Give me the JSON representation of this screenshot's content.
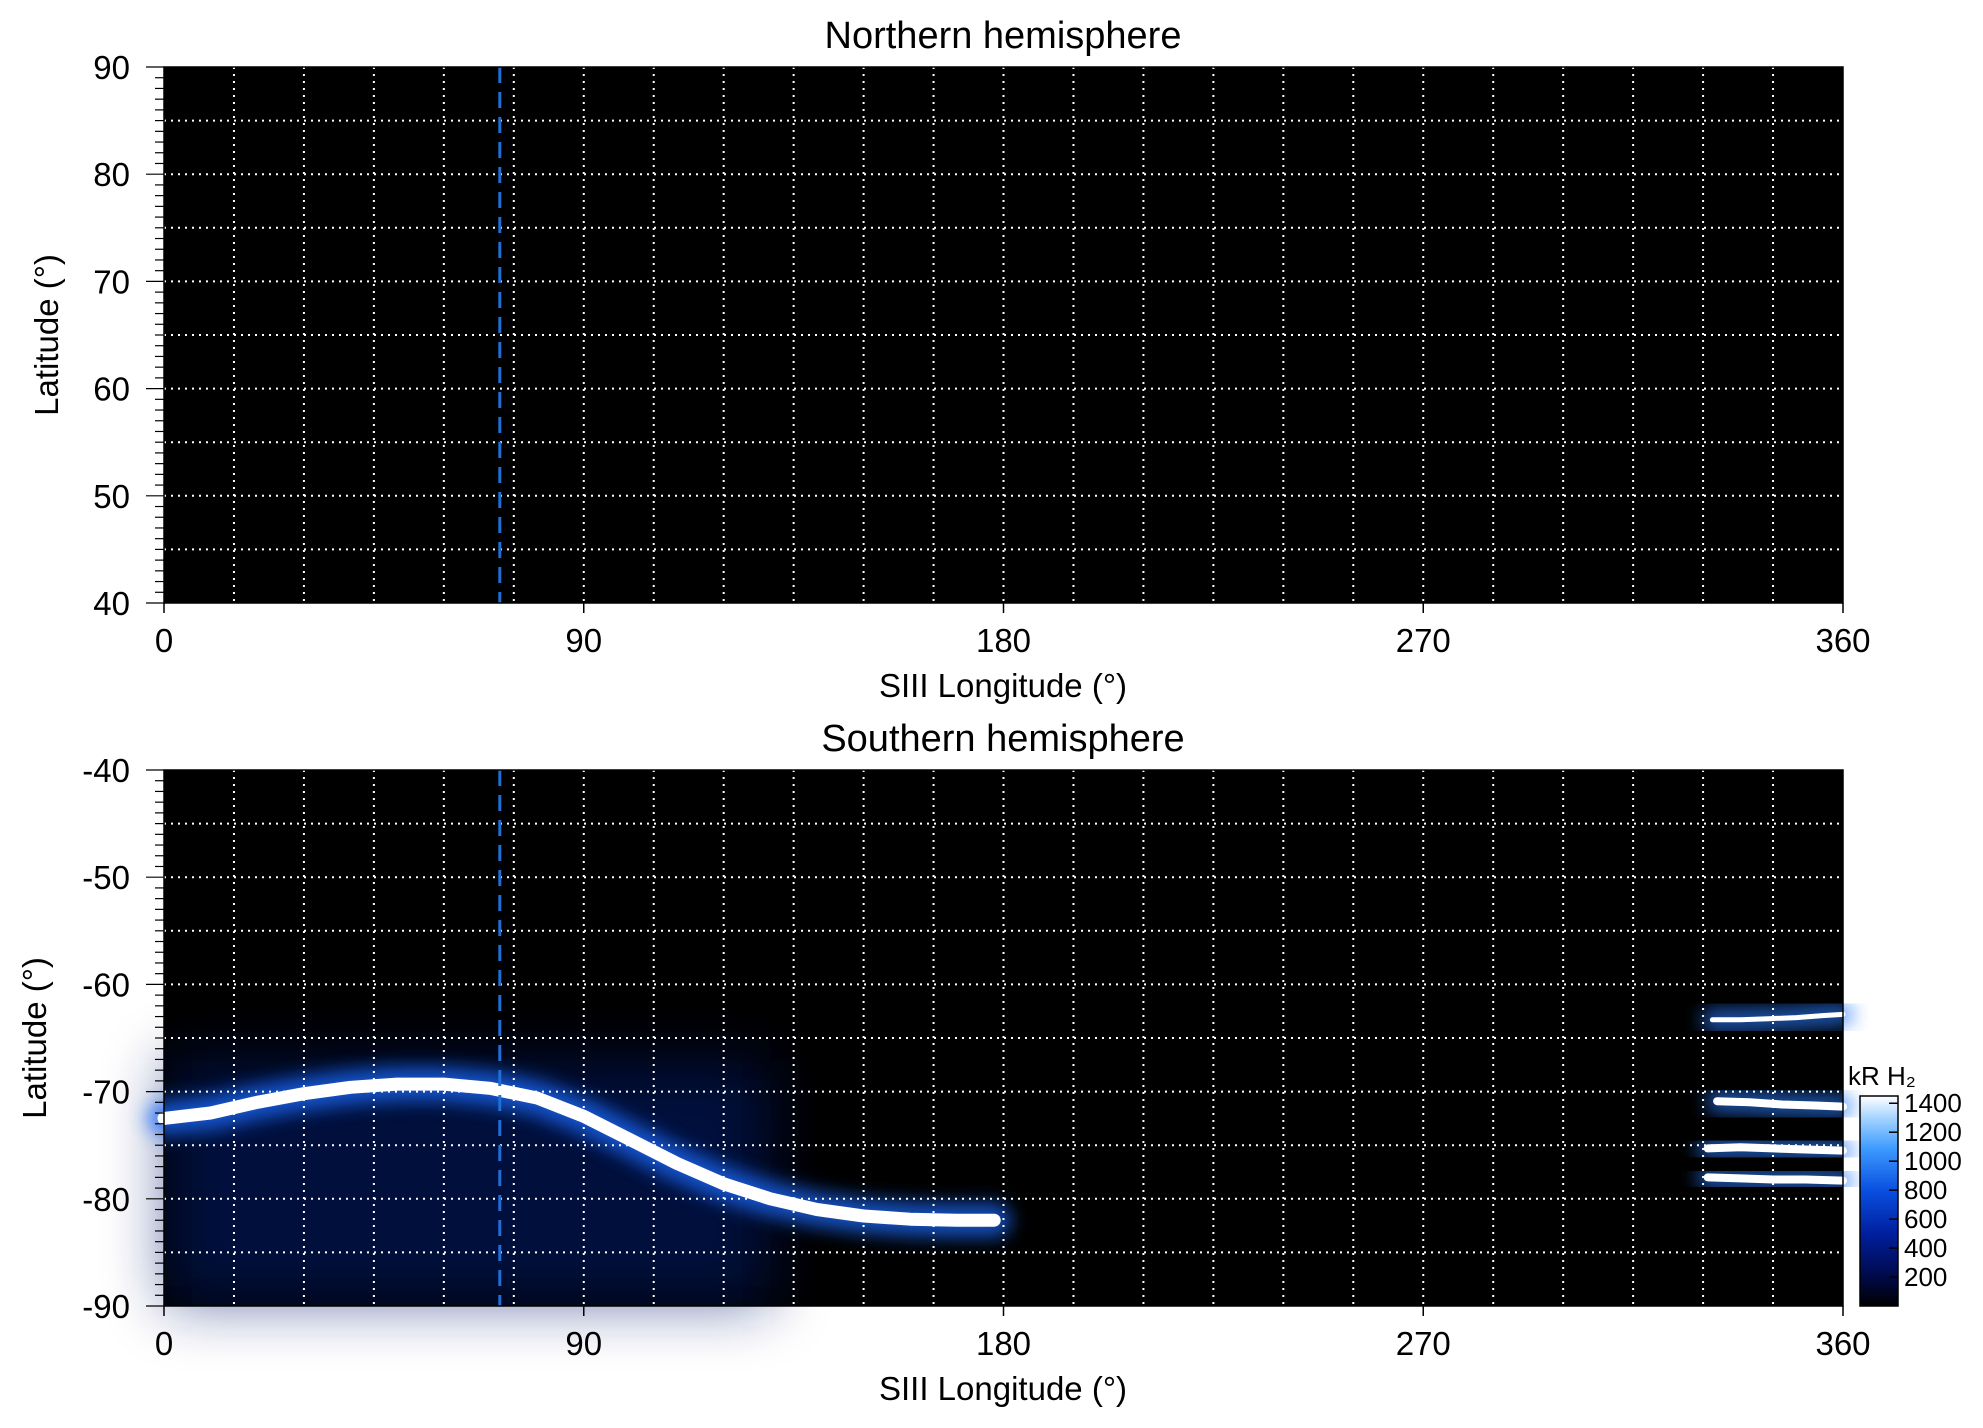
{
  "chart_data": [
    {
      "type": "heatmap",
      "title": "Northern hemisphere",
      "xlabel": "SIII Longitude (°)",
      "ylabel": "Latitude (°)",
      "xlim": [
        0,
        360
      ],
      "ylim": [
        40,
        90
      ],
      "x_ticks": [
        0,
        90,
        180,
        270,
        360
      ],
      "y_ticks": [
        40,
        50,
        60,
        70,
        80,
        90
      ],
      "x_grid_step": 15,
      "y_grid_step": 5,
      "grid": true,
      "background_color": "#000000",
      "grid_color": "#ffffff",
      "marker_longitude": 72,
      "marker_color": "#1f6fd6",
      "emission": "none"
    },
    {
      "type": "heatmap",
      "title": "Southern hemisphere",
      "xlabel": "SIII Longitude (°)",
      "ylabel": "Latitude (°)",
      "xlim": [
        0,
        360
      ],
      "ylim": [
        -90,
        -40
      ],
      "x_ticks": [
        0,
        90,
        180,
        270,
        360
      ],
      "y_ticks": [
        -90,
        -80,
        -70,
        -60,
        -50,
        -40
      ],
      "x_grid_step": 15,
      "y_grid_step": 5,
      "grid": true,
      "background_color": "#000000",
      "grid_color": "#ffffff",
      "marker_longitude": 72,
      "marker_color": "#1f6fd6",
      "main_oval": {
        "lon": [
          0,
          10,
          20,
          30,
          40,
          50,
          60,
          70,
          80,
          90,
          100,
          110,
          120,
          130,
          140,
          150,
          160,
          170,
          178
        ],
        "lat": [
          -72.5,
          -72,
          -71,
          -70.2,
          -69.6,
          -69.3,
          -69.3,
          -69.7,
          -70.6,
          -72.3,
          -74.5,
          -76.7,
          -78.6,
          -80,
          -81,
          -81.6,
          -81.9,
          -82,
          -82
        ]
      },
      "secondary_arcs": [
        {
          "lon": [
            332,
            338,
            344,
            350,
            356,
            360
          ],
          "lat": [
            -63.3,
            -63.3,
            -63.2,
            -63.1,
            -62.9,
            -62.8
          ]
        },
        {
          "lon": [
            333,
            340,
            347,
            354,
            360
          ],
          "lat": [
            -70.9,
            -71,
            -71.2,
            -71.3,
            -71.4
          ]
        },
        {
          "lon": [
            331,
            338,
            345,
            352,
            360
          ],
          "lat": [
            -75.3,
            -75.2,
            -75.3,
            -75.4,
            -75.5
          ]
        },
        {
          "lon": [
            331,
            338,
            345,
            352,
            360
          ],
          "lat": [
            -78,
            -78.1,
            -78.2,
            -78.2,
            -78.3
          ]
        }
      ],
      "colorbar": {
        "label": "kR H₂",
        "ticks": [
          200,
          400,
          600,
          800,
          1000,
          1200,
          1400
        ],
        "range": [
          0,
          1450
        ],
        "colors": [
          "#000000",
          "#000a4d",
          "#0020a0",
          "#0a4fe0",
          "#3d9bff",
          "#a9d6ff",
          "#ffffff"
        ]
      }
    }
  ]
}
